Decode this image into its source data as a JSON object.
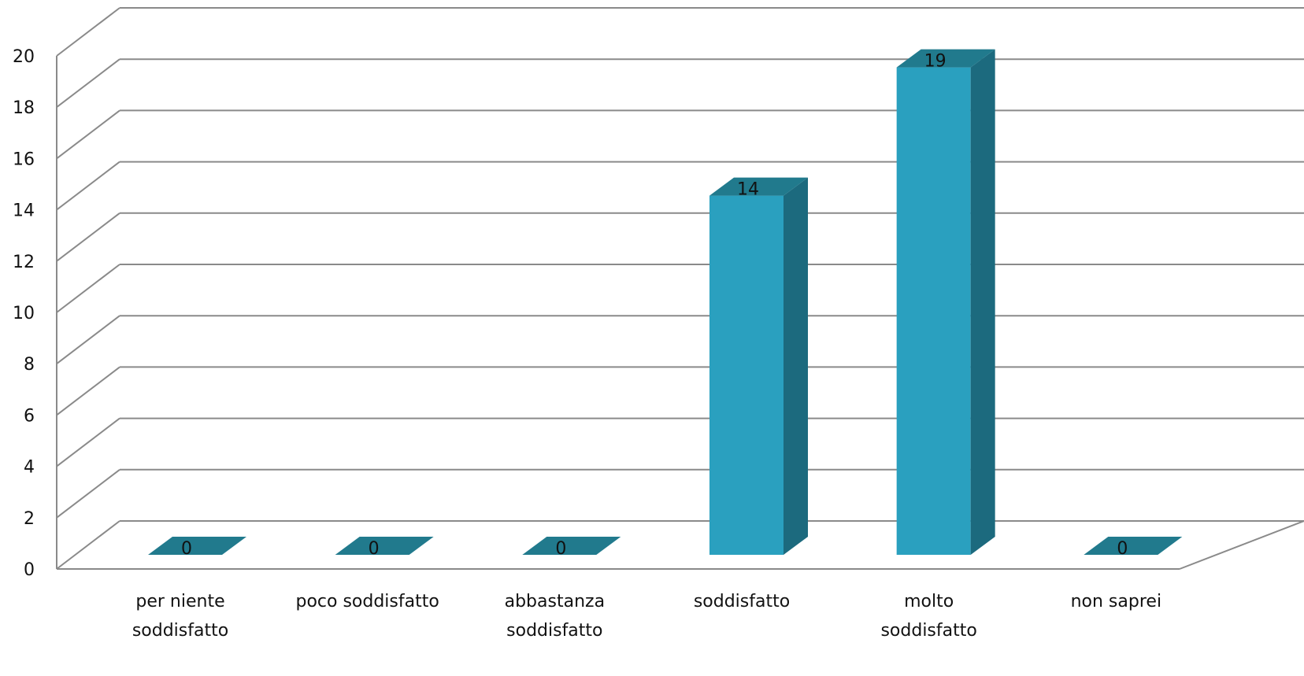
{
  "chart_data": {
    "type": "bar",
    "title": "",
    "xlabel": "",
    "ylabel": "",
    "categories": [
      [
        "per niente",
        "soddisfatto"
      ],
      [
        "poco soddisfatto"
      ],
      [
        "abbastanza",
        "soddisfatto"
      ],
      [
        "soddisfatto"
      ],
      [
        "molto",
        "soddisfatto"
      ],
      [
        "non saprei"
      ]
    ],
    "values": [
      0,
      0,
      0,
      14,
      19,
      0
    ],
    "ylim": [
      0,
      20
    ],
    "yticks": [
      0,
      2,
      4,
      6,
      8,
      10,
      12,
      14,
      16,
      18,
      20
    ],
    "grid": true,
    "style": "3d-column",
    "colors": {
      "front": "#2aa0bf",
      "side": "#1c6a7e",
      "top": "#217a8d",
      "grid": "#8a8a8a"
    }
  }
}
